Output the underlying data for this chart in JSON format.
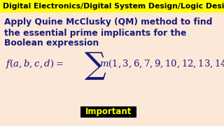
{
  "background_color": "#fce8d8",
  "header_text": "Digital Electronics/Digital System Design/Logic Design",
  "header_bg": "#ffff00",
  "header_fontsize": 7.8,
  "header_color": "#000000",
  "body_text_line1": "Apply Quine McClusky (QM) method to find",
  "body_text_line2": "the essential prime implicants for the",
  "body_text_line3": "Boolean expression",
  "body_fontsize": 8.8,
  "body_color": "#1a1a7a",
  "formula_fontsize": 9.5,
  "important_text": "Important",
  "important_bg": "#000000",
  "important_color": "#ffff00",
  "important_fontsize": 8.5,
  "fig_width": 3.2,
  "fig_height": 1.8,
  "dpi": 100
}
